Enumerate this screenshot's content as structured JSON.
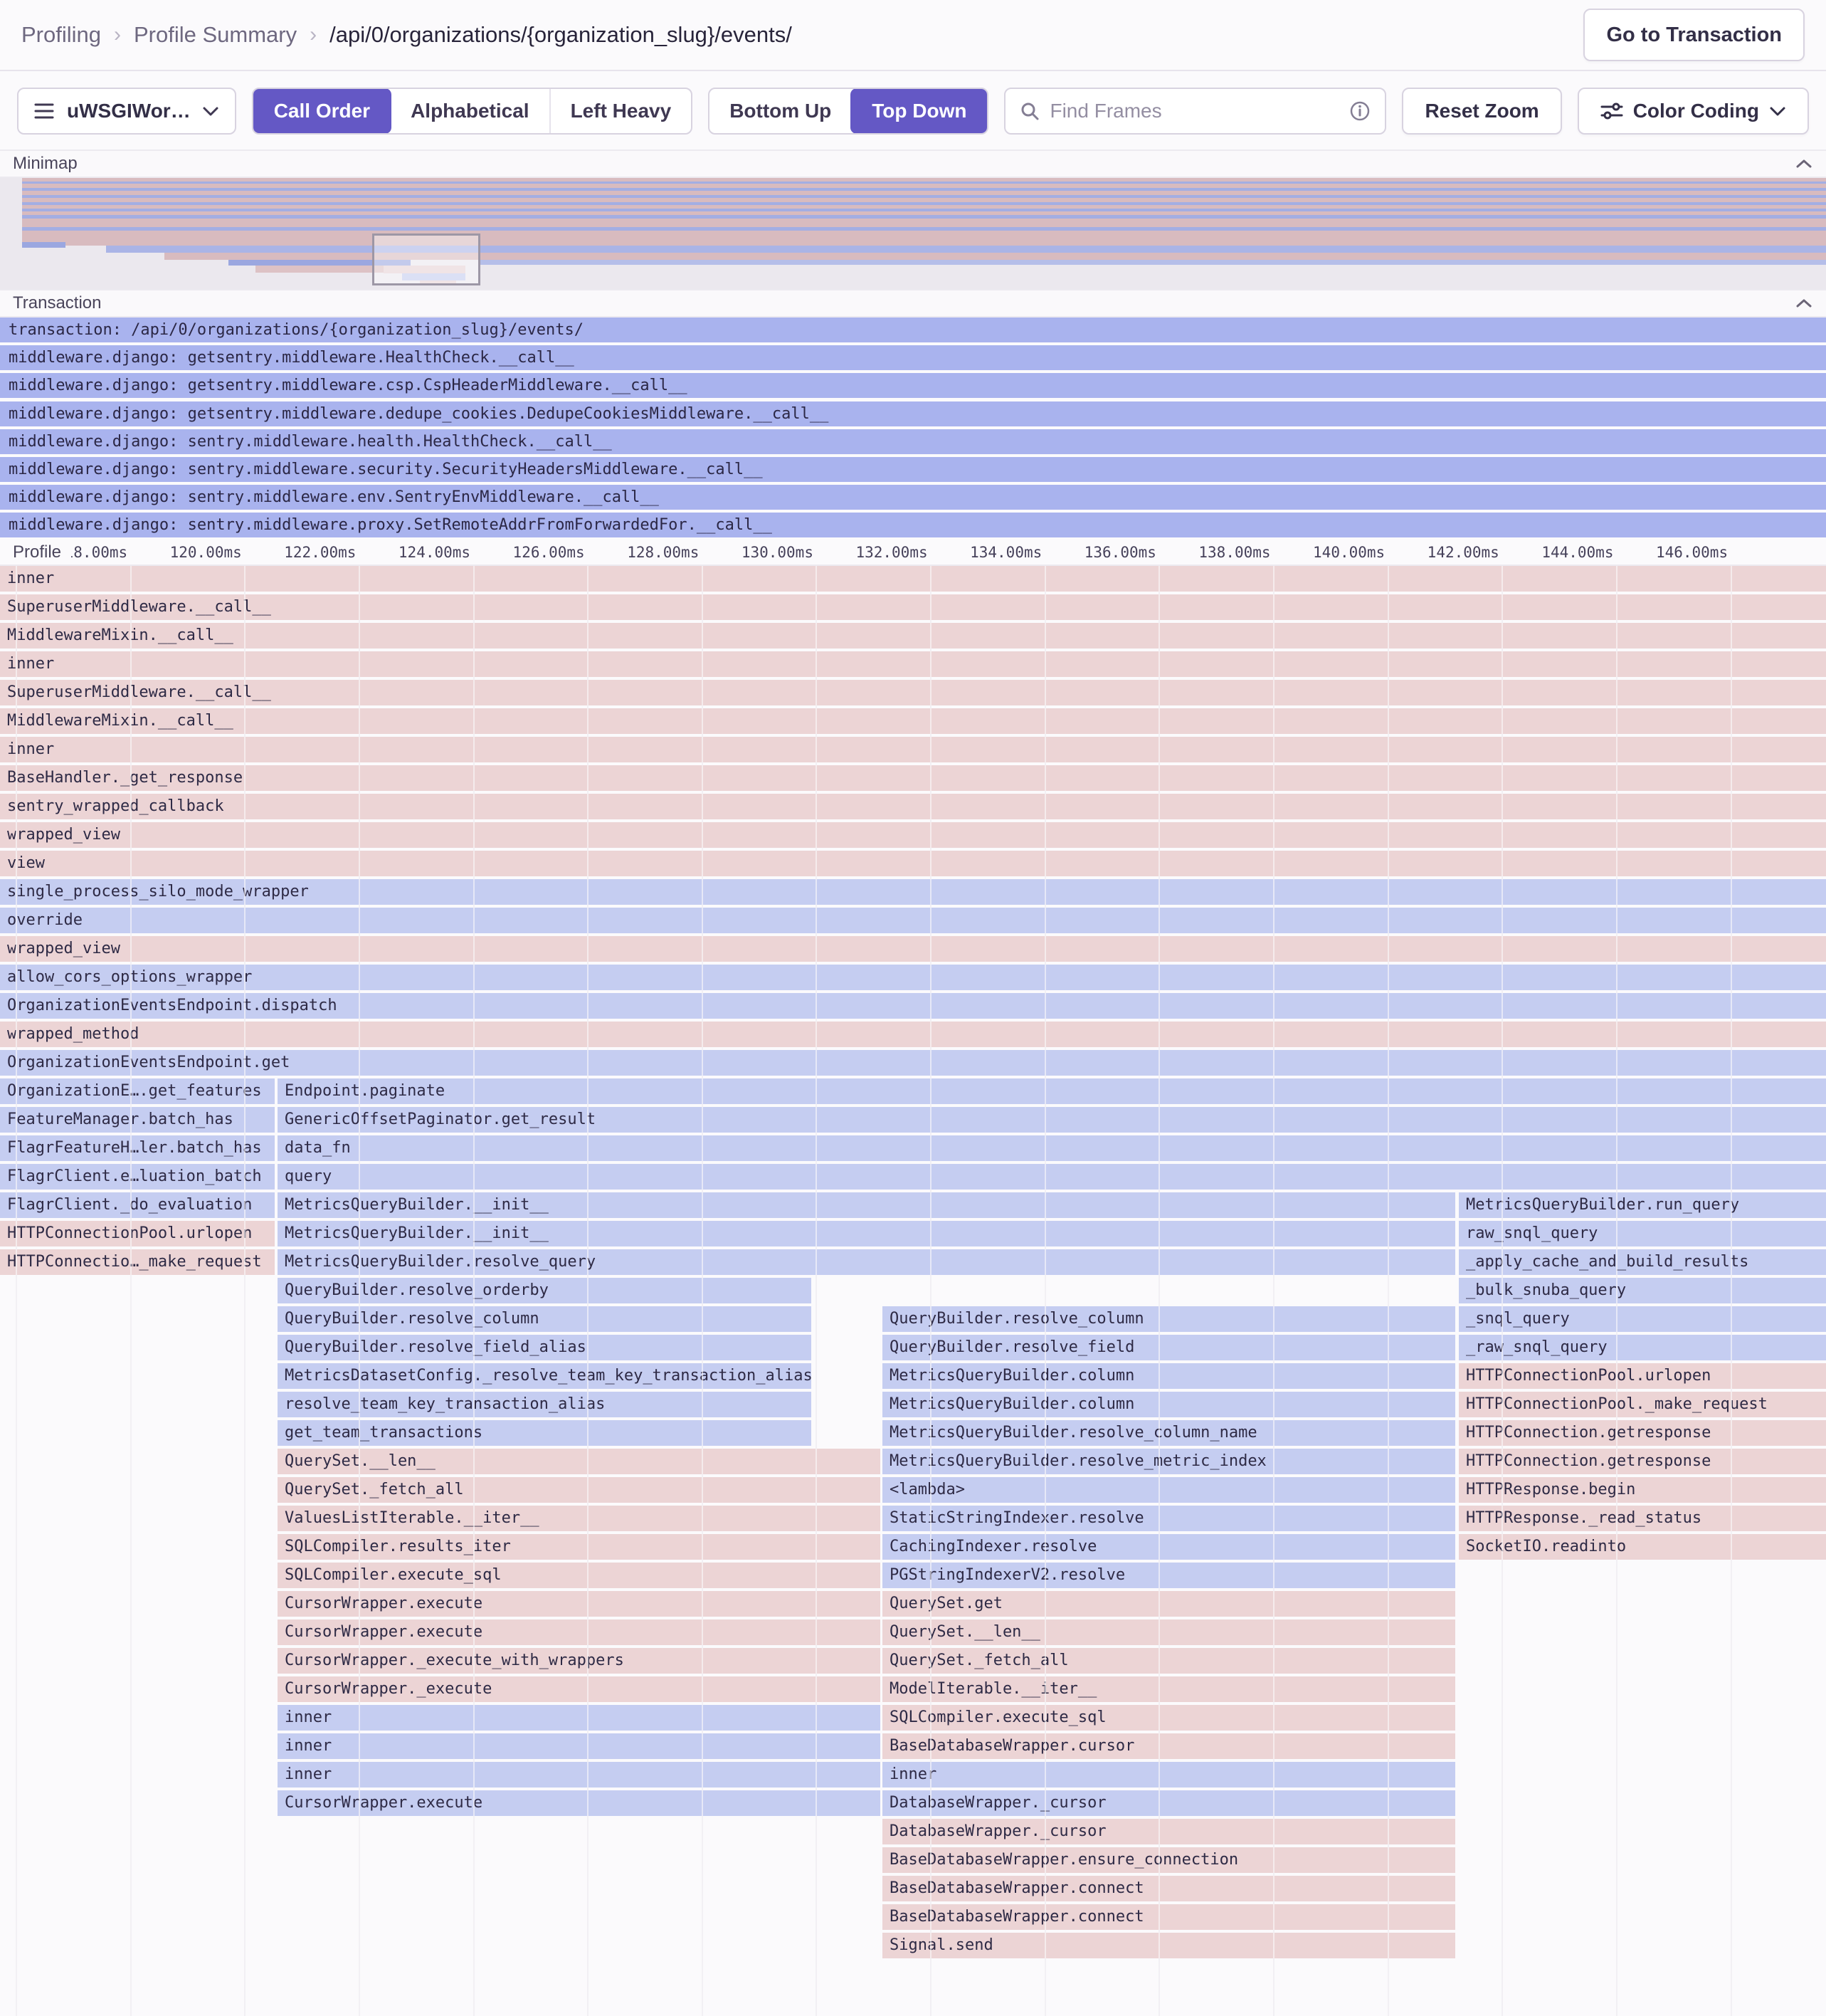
{
  "colors": {
    "accent": "#6458c5",
    "frame_pink": "#ecd4d5",
    "frame_blue": "#c5cdf1",
    "transaction_bar": "#a9b3ee",
    "minimap_pink": "#d8bbbf",
    "minimap_blue": "#9ba7e0"
  },
  "breadcrumb": {
    "items": [
      "Profiling",
      "Profile Summary",
      "/api/0/organizations/{organization_slug}/events/"
    ],
    "separator": "›"
  },
  "header": {
    "go_to_transaction": "Go to Transaction"
  },
  "toolbar": {
    "thread_label": "uWSGIWor…",
    "sort_options": [
      "Call Order",
      "Alphabetical",
      "Left Heavy"
    ],
    "sort_active": "Call Order",
    "view_options": [
      "Bottom Up",
      "Top Down"
    ],
    "view_active": "Top Down",
    "search_placeholder": "Find Frames",
    "reset_zoom": "Reset Zoom",
    "color_coding": "Color Coding"
  },
  "sections": {
    "minimap": "Minimap",
    "transaction": "Transaction",
    "profile": "Profile"
  },
  "transaction_rows": [
    "transaction: /api/0/organizations/{organization_slug}/events/",
    "middleware.django: getsentry.middleware.HealthCheck.__call__",
    "middleware.django: getsentry.middleware.csp.CspHeaderMiddleware.__call__",
    "middleware.django: getsentry.middleware.dedupe_cookies.DedupeCookiesMiddleware.__call__",
    "middleware.django: sentry.middleware.health.HealthCheck.__call__",
    "middleware.django: sentry.middleware.security.SecurityHeadersMiddleware.__call__",
    "middleware.django: sentry.middleware.env.SentryEnvMiddleware.__call__",
    "middleware.django: sentry.middleware.proxy.SetRemoteAddrFromForwardedFor.__call__"
  ],
  "profile": {
    "axis_ticks": [
      "118.00ms",
      "120.00ms",
      "122.00ms",
      "124.00ms",
      "126.00ms",
      "128.00ms",
      "130.00ms",
      "132.00ms",
      "134.00ms",
      "136.00ms",
      "138.00ms",
      "140.00ms",
      "142.00ms",
      "144.00ms",
      "146.00ms"
    ],
    "frames": [
      [
        0,
        0,
        2566,
        "p",
        "inner"
      ],
      [
        1,
        0,
        2566,
        "p",
        "SuperuserMiddleware.__call__"
      ],
      [
        2,
        0,
        2566,
        "p",
        "MiddlewareMixin.__call__"
      ],
      [
        3,
        0,
        2566,
        "p",
        "inner"
      ],
      [
        4,
        0,
        2566,
        "p",
        "SuperuserMiddleware.__call__"
      ],
      [
        5,
        0,
        2566,
        "p",
        "MiddlewareMixin.__call__"
      ],
      [
        6,
        0,
        2566,
        "p",
        "inner"
      ],
      [
        7,
        0,
        2566,
        "p",
        "BaseHandler._get_response"
      ],
      [
        8,
        0,
        2566,
        "p",
        "sentry_wrapped_callback"
      ],
      [
        9,
        0,
        2566,
        "p",
        "wrapped_view"
      ],
      [
        10,
        0,
        2566,
        "p",
        "view"
      ],
      [
        11,
        0,
        2566,
        "b",
        "single_process_silo_mode_wrapper"
      ],
      [
        12,
        0,
        2566,
        "b",
        "override"
      ],
      [
        13,
        0,
        2566,
        "p",
        "wrapped_view"
      ],
      [
        14,
        0,
        2566,
        "b",
        "allow_cors_options_wrapper"
      ],
      [
        15,
        0,
        2566,
        "b",
        "OrganizationEventsEndpoint.dispatch"
      ],
      [
        16,
        0,
        2566,
        "p",
        "wrapped_method"
      ],
      [
        17,
        0,
        2566,
        "b",
        "OrganizationEventsEndpoint.get"
      ],
      [
        18,
        0,
        386,
        "b",
        "OrganizationE….get_features"
      ],
      [
        18,
        390,
        2566,
        "b",
        "Endpoint.paginate"
      ],
      [
        19,
        0,
        386,
        "b",
        "FeatureManager.batch_has"
      ],
      [
        19,
        390,
        2566,
        "b",
        "GenericOffsetPaginator.get_result"
      ],
      [
        20,
        0,
        386,
        "b",
        "FlagrFeatureH…ler.batch_has"
      ],
      [
        20,
        390,
        2566,
        "b",
        "data_fn"
      ],
      [
        21,
        0,
        386,
        "b",
        "FlagrClient.e…luation_batch"
      ],
      [
        21,
        390,
        2566,
        "b",
        "query"
      ],
      [
        22,
        0,
        386,
        "b",
        "FlagrClient._do_evaluation"
      ],
      [
        22,
        390,
        2045,
        "b",
        "MetricsQueryBuilder.__init__"
      ],
      [
        22,
        2050,
        2566,
        "b",
        "MetricsQueryBuilder.run_query"
      ],
      [
        23,
        0,
        386,
        "p",
        "HTTPConnectionPool.urlopen"
      ],
      [
        23,
        390,
        2045,
        "b",
        "MetricsQueryBuilder.__init__"
      ],
      [
        23,
        2050,
        2566,
        "b",
        "raw_snql_query"
      ],
      [
        24,
        0,
        386,
        "p",
        "HTTPConnectio…_make_request"
      ],
      [
        24,
        390,
        2045,
        "b",
        "MetricsQueryBuilder.resolve_query"
      ],
      [
        24,
        2050,
        2566,
        "b",
        "_apply_cache_and_build_results"
      ],
      [
        25,
        390,
        1140,
        "b",
        "QueryBuilder.resolve_orderby"
      ],
      [
        25,
        2050,
        2566,
        "b",
        "_bulk_snuba_query"
      ],
      [
        26,
        390,
        1140,
        "b",
        "QueryBuilder.resolve_column"
      ],
      [
        26,
        1240,
        2045,
        "b",
        "QueryBuilder.resolve_column"
      ],
      [
        26,
        2050,
        2566,
        "b",
        "_snql_query"
      ],
      [
        27,
        390,
        1140,
        "b",
        "QueryBuilder.resolve_field_alias"
      ],
      [
        27,
        1240,
        2045,
        "b",
        "QueryBuilder.resolve_field"
      ],
      [
        27,
        2050,
        2566,
        "b",
        "_raw_snql_query"
      ],
      [
        28,
        390,
        1140,
        "b",
        "MetricsDatasetConfig._resolve_team_key_transaction_alias"
      ],
      [
        28,
        1240,
        2045,
        "b",
        "MetricsQueryBuilder.column"
      ],
      [
        28,
        2050,
        2566,
        "p",
        "HTTPConnectionPool.urlopen"
      ],
      [
        29,
        390,
        1140,
        "b",
        "resolve_team_key_transaction_alias"
      ],
      [
        29,
        1240,
        2045,
        "b",
        "MetricsQueryBuilder.column"
      ],
      [
        29,
        2050,
        2566,
        "p",
        "HTTPConnectionPool._make_request"
      ],
      [
        30,
        390,
        1140,
        "b",
        "get_team_transactions"
      ],
      [
        30,
        1240,
        2045,
        "b",
        "MetricsQueryBuilder.resolve_column_name"
      ],
      [
        30,
        2050,
        2566,
        "p",
        "HTTPConnection.getresponse"
      ],
      [
        31,
        390,
        1237,
        "p",
        "QuerySet.__len__"
      ],
      [
        31,
        1240,
        2045,
        "b",
        "MetricsQueryBuilder.resolve_metric_index"
      ],
      [
        31,
        2050,
        2566,
        "p",
        "HTTPConnection.getresponse"
      ],
      [
        32,
        390,
        1237,
        "p",
        "QuerySet._fetch_all"
      ],
      [
        32,
        1240,
        2045,
        "b",
        "<lambda>"
      ],
      [
        32,
        2050,
        2566,
        "p",
        "HTTPResponse.begin"
      ],
      [
        33,
        390,
        1237,
        "p",
        "ValuesListIterable.__iter__"
      ],
      [
        33,
        1240,
        2045,
        "b",
        "StaticStringIndexer.resolve"
      ],
      [
        33,
        2050,
        2566,
        "p",
        "HTTPResponse._read_status"
      ],
      [
        34,
        390,
        1237,
        "p",
        "SQLCompiler.results_iter"
      ],
      [
        34,
        1240,
        2045,
        "b",
        "CachingIndexer.resolve"
      ],
      [
        34,
        2050,
        2566,
        "p",
        "SocketIO.readinto"
      ],
      [
        35,
        390,
        1237,
        "p",
        "SQLCompiler.execute_sql"
      ],
      [
        35,
        1240,
        2045,
        "b",
        "PGStringIndexerV2.resolve"
      ],
      [
        36,
        390,
        1237,
        "p",
        "CursorWrapper.execute"
      ],
      [
        36,
        1240,
        2045,
        "p",
        "QuerySet.get"
      ],
      [
        37,
        390,
        1237,
        "p",
        "CursorWrapper.execute"
      ],
      [
        37,
        1240,
        2045,
        "p",
        "QuerySet.__len__"
      ],
      [
        38,
        390,
        1237,
        "p",
        "CursorWrapper._execute_with_wrappers"
      ],
      [
        38,
        1240,
        2045,
        "p",
        "QuerySet._fetch_all"
      ],
      [
        39,
        390,
        1237,
        "p",
        "CursorWrapper._execute"
      ],
      [
        39,
        1240,
        2045,
        "p",
        "ModelIterable.__iter__"
      ],
      [
        40,
        390,
        1237,
        "b",
        "inner"
      ],
      [
        40,
        1240,
        2045,
        "p",
        "SQLCompiler.execute_sql"
      ],
      [
        41,
        390,
        1237,
        "b",
        "inner"
      ],
      [
        41,
        1240,
        2045,
        "p",
        "BaseDatabaseWrapper.cursor"
      ],
      [
        42,
        390,
        1237,
        "b",
        "inner"
      ],
      [
        42,
        1240,
        2045,
        "b",
        "inner"
      ],
      [
        43,
        390,
        1237,
        "b",
        "CursorWrapper.execute"
      ],
      [
        43,
        1240,
        2045,
        "b",
        "DatabaseWrapper._cursor"
      ],
      [
        44,
        1240,
        2045,
        "p",
        "DatabaseWrapper._cursor"
      ],
      [
        45,
        1240,
        2045,
        "p",
        "BaseDatabaseWrapper.ensure_connection"
      ],
      [
        46,
        1240,
        2045,
        "p",
        "BaseDatabaseWrapper.connect"
      ],
      [
        47,
        1240,
        2045,
        "p",
        "BaseDatabaseWrapper.connect"
      ],
      [
        48,
        1240,
        2045,
        "p",
        "Signal.send"
      ]
    ]
  }
}
